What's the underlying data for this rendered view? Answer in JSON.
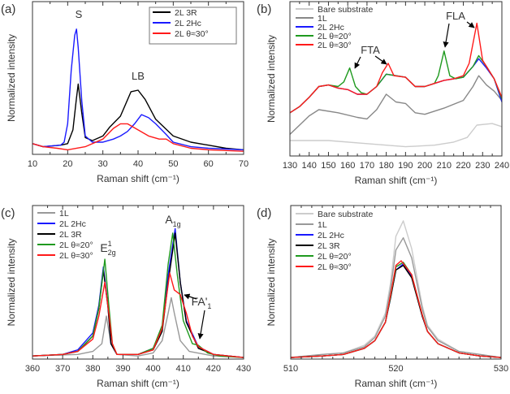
{
  "chart_data": [
    {
      "panel": "(a)",
      "type": "line",
      "xlabel": "Raman shift (cm⁻¹)",
      "ylabel": "Normalized intensity",
      "xlim": [
        10,
        70
      ],
      "ylim": [
        0,
        1
      ],
      "xticks": [
        10,
        20,
        30,
        40,
        50,
        60,
        70
      ],
      "minor_step": 5,
      "legend": "top-right",
      "legend_boxed": true,
      "grid": false,
      "annotations": [
        {
          "text": "S"
        },
        {
          "text": "LB"
        }
      ],
      "series": [
        {
          "name": "2L 3R",
          "color": "#000000",
          "x": [
            10,
            13,
            18,
            20,
            21.5,
            22.5,
            23,
            24,
            25,
            27,
            30,
            32,
            35,
            38,
            40,
            42,
            45,
            50,
            55,
            60,
            65,
            70
          ],
          "y": [
            0.07,
            0.05,
            0.06,
            0.07,
            0.16,
            0.37,
            0.46,
            0.27,
            0.11,
            0.09,
            0.12,
            0.18,
            0.25,
            0.41,
            0.42,
            0.36,
            0.23,
            0.12,
            0.08,
            0.06,
            0.04,
            0.03
          ]
        },
        {
          "name": "2L 2Hc",
          "color": "#1a1aff",
          "x": [
            10,
            13,
            18,
            19,
            20,
            21,
            22,
            22.5,
            23,
            24,
            25,
            27,
            30,
            33,
            35,
            37,
            39,
            41,
            43,
            45,
            48,
            50,
            55,
            60,
            70
          ],
          "y": [
            0.07,
            0.05,
            0.06,
            0.08,
            0.2,
            0.55,
            0.78,
            0.82,
            0.7,
            0.35,
            0.12,
            0.08,
            0.08,
            0.1,
            0.12,
            0.15,
            0.2,
            0.26,
            0.24,
            0.2,
            0.13,
            0.08,
            0.05,
            0.04,
            0.03
          ]
        },
        {
          "name": "2L θ≈30°",
          "color": "#ff1a1a",
          "x": [
            10,
            13,
            17,
            20,
            25,
            30,
            33,
            35,
            37,
            40,
            43,
            46,
            48,
            50,
            55,
            60,
            70
          ],
          "y": [
            0.07,
            0.05,
            0.04,
            0.03,
            0.05,
            0.1,
            0.17,
            0.2,
            0.2,
            0.16,
            0.12,
            0.1,
            0.1,
            0.07,
            0.04,
            0.03,
            0.02
          ]
        }
      ]
    },
    {
      "panel": "(b)",
      "type": "line",
      "xlabel": "Raman shift (cm⁻¹)",
      "ylabel": "Normalized intensity",
      "xlim": [
        130,
        240
      ],
      "ylim": [
        0,
        1
      ],
      "xticks": [
        130,
        140,
        150,
        160,
        170,
        180,
        190,
        200,
        210,
        220,
        230,
        240
      ],
      "minor_step": 5,
      "legend": "top-left",
      "legend_boxed": false,
      "grid": false,
      "annotations": [
        {
          "text": "FTA"
        },
        {
          "text": "FLA"
        }
      ],
      "series": [
        {
          "name": "Bare substrate",
          "color": "#cccccc",
          "x": [
            130,
            150,
            170,
            190,
            205,
            215,
            222,
            227,
            235,
            240
          ],
          "y": [
            0.1,
            0.1,
            0.08,
            0.06,
            0.07,
            0.09,
            0.12,
            0.2,
            0.21,
            0.19
          ]
        },
        {
          "name": "1L",
          "color": "#888888",
          "x": [
            130,
            135,
            140,
            145,
            155,
            165,
            170,
            175,
            180,
            185,
            190,
            195,
            200,
            210,
            220,
            225,
            228,
            232,
            236,
            240
          ],
          "y": [
            0.14,
            0.2,
            0.26,
            0.3,
            0.28,
            0.25,
            0.24,
            0.3,
            0.4,
            0.35,
            0.34,
            0.28,
            0.27,
            0.31,
            0.36,
            0.45,
            0.52,
            0.46,
            0.42,
            0.36
          ]
        },
        {
          "name": "2L 2Hc",
          "color": "#1a1aff",
          "x": [
            130,
            135,
            140,
            145,
            150,
            155,
            160,
            165,
            170,
            175,
            180,
            185,
            190,
            195,
            200,
            205,
            210,
            215,
            220,
            225,
            228,
            232,
            236,
            240
          ],
          "y": [
            0.28,
            0.32,
            0.38,
            0.45,
            0.46,
            0.44,
            0.43,
            0.4,
            0.4,
            0.45,
            0.53,
            0.52,
            0.51,
            0.45,
            0.45,
            0.47,
            0.49,
            0.5,
            0.51,
            0.58,
            0.63,
            0.57,
            0.5,
            0.35
          ]
        },
        {
          "name": "2L θ≈20°",
          "color": "#1f9a1f",
          "x": [
            130,
            135,
            140,
            145,
            150,
            155,
            158,
            161,
            164,
            167,
            170,
            175,
            180,
            185,
            190,
            195,
            200,
            205,
            207,
            210,
            213,
            216,
            220,
            225,
            228,
            232,
            236,
            240
          ],
          "y": [
            0.28,
            0.32,
            0.38,
            0.45,
            0.46,
            0.45,
            0.48,
            0.57,
            0.45,
            0.41,
            0.4,
            0.45,
            0.53,
            0.52,
            0.51,
            0.45,
            0.45,
            0.47,
            0.52,
            0.68,
            0.52,
            0.5,
            0.51,
            0.58,
            0.65,
            0.58,
            0.5,
            0.37
          ]
        },
        {
          "name": "2L θ≈30°",
          "color": "#ff1a1a",
          "x": [
            130,
            135,
            140,
            145,
            150,
            155,
            160,
            165,
            170,
            175,
            178,
            181,
            184,
            190,
            195,
            200,
            205,
            210,
            215,
            220,
            223,
            227,
            230,
            232,
            236,
            240
          ],
          "y": [
            0.28,
            0.32,
            0.38,
            0.45,
            0.46,
            0.44,
            0.43,
            0.4,
            0.4,
            0.45,
            0.54,
            0.6,
            0.52,
            0.51,
            0.45,
            0.45,
            0.47,
            0.49,
            0.5,
            0.52,
            0.6,
            0.86,
            0.62,
            0.58,
            0.5,
            0.38
          ]
        }
      ]
    },
    {
      "panel": "(c)",
      "type": "line",
      "xlabel": "Raman shift (cm⁻¹)",
      "ylabel": "Normalized intensity",
      "xlim": [
        360,
        430
      ],
      "ylim": [
        0,
        1
      ],
      "xticks": [
        360,
        370,
        380,
        390,
        400,
        410,
        420,
        430
      ],
      "minor_step": 5,
      "legend": "top-left",
      "legend_boxed": false,
      "grid": false,
      "annotations": [
        {
          "text": "A",
          "sub": "1g"
        },
        {
          "text": "E",
          "sup": "1",
          "sub": "2g"
        },
        {
          "text": "FA'",
          "sub": "1"
        }
      ],
      "series": [
        {
          "name": "1L",
          "color": "#999999",
          "x": [
            360,
            375,
            380,
            383,
            384.5,
            386,
            388,
            395,
            400,
            403,
            405,
            406,
            407,
            409,
            412,
            420,
            430
          ],
          "y": [
            0.02,
            0.03,
            0.05,
            0.1,
            0.28,
            0.1,
            0.03,
            0.02,
            0.04,
            0.12,
            0.3,
            0.4,
            0.3,
            0.12,
            0.05,
            0.02,
            0.01
          ]
        },
        {
          "name": "2L 2Hc",
          "color": "#1a1aff",
          "x": [
            360,
            370,
            375,
            380,
            382,
            383.5,
            385,
            386,
            388,
            395,
            400,
            403,
            405,
            407.3,
            409,
            411,
            415,
            420,
            430
          ],
          "y": [
            0.02,
            0.03,
            0.06,
            0.17,
            0.35,
            0.6,
            0.35,
            0.1,
            0.03,
            0.03,
            0.07,
            0.2,
            0.55,
            0.85,
            0.5,
            0.25,
            0.08,
            0.03,
            0.01
          ]
        },
        {
          "name": "2L 3R",
          "color": "#000000",
          "x": [
            360,
            370,
            375,
            380,
            382,
            383.5,
            385,
            386,
            388,
            395,
            400,
            403,
            405,
            407.3,
            409,
            411,
            415,
            420,
            430
          ],
          "y": [
            0.02,
            0.03,
            0.05,
            0.15,
            0.33,
            0.58,
            0.34,
            0.1,
            0.03,
            0.03,
            0.06,
            0.18,
            0.5,
            0.82,
            0.5,
            0.24,
            0.07,
            0.03,
            0.01
          ]
        },
        {
          "name": "2L θ≈20°",
          "color": "#1f9a1f",
          "x": [
            360,
            370,
            375,
            380,
            382,
            384,
            385.3,
            386.5,
            388,
            395,
            400,
            403,
            405,
            406.5,
            408,
            410,
            413,
            415,
            418,
            422,
            430
          ],
          "y": [
            0.02,
            0.03,
            0.05,
            0.15,
            0.33,
            0.65,
            0.35,
            0.1,
            0.03,
            0.03,
            0.07,
            0.22,
            0.62,
            0.82,
            0.55,
            0.25,
            0.1,
            0.09,
            0.04,
            0.02,
            0.01
          ]
        },
        {
          "name": "2L θ≈30°",
          "color": "#ff1a1a",
          "x": [
            360,
            370,
            375,
            380,
            382,
            384,
            385.3,
            386.5,
            388,
            395,
            400,
            403,
            405.5,
            407,
            409,
            411,
            413,
            415,
            420,
            430
          ],
          "y": [
            0.02,
            0.03,
            0.05,
            0.13,
            0.28,
            0.5,
            0.3,
            0.1,
            0.03,
            0.03,
            0.06,
            0.2,
            0.56,
            0.45,
            0.42,
            0.3,
            0.15,
            0.08,
            0.03,
            0.01
          ]
        }
      ]
    },
    {
      "panel": "(d)",
      "type": "line",
      "xlabel": "Raman shift (cm⁻¹)",
      "ylabel": "Normalized intensity",
      "xlim": [
        510,
        530
      ],
      "ylim": [
        0,
        1
      ],
      "xticks": [
        510,
        520,
        530
      ],
      "minor_step": 1,
      "legend": "top-left",
      "legend_boxed": false,
      "grid": false,
      "annotations": [],
      "series": [
        {
          "name": "Bare substrate",
          "color": "#cccccc",
          "x": [
            510,
            513,
            515,
            517,
            518,
            519,
            519.5,
            520,
            520.7,
            521.5,
            522.5,
            523,
            524,
            526,
            528,
            530
          ],
          "y": [
            0.01,
            0.03,
            0.04,
            0.09,
            0.15,
            0.3,
            0.5,
            0.8,
            0.9,
            0.72,
            0.35,
            0.22,
            0.13,
            0.05,
            0.03,
            0.01
          ]
        },
        {
          "name": "1L",
          "color": "#999999",
          "x": [
            510,
            513,
            515,
            517,
            518,
            519,
            519.5,
            520,
            520.7,
            521.5,
            522.5,
            523,
            524,
            526,
            528,
            530
          ],
          "y": [
            0.01,
            0.03,
            0.04,
            0.08,
            0.14,
            0.28,
            0.46,
            0.71,
            0.79,
            0.66,
            0.33,
            0.21,
            0.12,
            0.05,
            0.03,
            0.01
          ]
        },
        {
          "name": "2L 2Hc",
          "color": "#1a1aff",
          "x": [
            510,
            513,
            515,
            517,
            518,
            519,
            519.5,
            520,
            520.7,
            521.5,
            522.5,
            523,
            524,
            526,
            528,
            530
          ],
          "y": [
            0.01,
            0.02,
            0.03,
            0.07,
            0.12,
            0.24,
            0.4,
            0.58,
            0.62,
            0.54,
            0.28,
            0.18,
            0.1,
            0.04,
            0.02,
            0.01
          ]
        },
        {
          "name": "2L 3R",
          "color": "#000000",
          "x": [
            510,
            513,
            515,
            517,
            518,
            519,
            519.5,
            520,
            520.7,
            521.5,
            522.5,
            523,
            524,
            526,
            528,
            530
          ],
          "y": [
            0.01,
            0.02,
            0.03,
            0.07,
            0.12,
            0.24,
            0.4,
            0.58,
            0.61,
            0.53,
            0.28,
            0.18,
            0.1,
            0.04,
            0.02,
            0.01
          ]
        },
        {
          "name": "2L θ≈20°",
          "color": "#1f9a1f",
          "x": [
            510,
            513,
            515,
            517,
            518,
            519,
            519.5,
            520,
            520.7,
            521.5,
            522.5,
            523,
            524,
            526,
            528,
            530
          ],
          "y": [
            0.01,
            0.02,
            0.03,
            0.07,
            0.12,
            0.24,
            0.41,
            0.6,
            0.63,
            0.55,
            0.29,
            0.18,
            0.1,
            0.04,
            0.02,
            0.01
          ]
        },
        {
          "name": "2L θ≈30°",
          "color": "#ff1a1a",
          "x": [
            510,
            513,
            515,
            517,
            518,
            519,
            519.5,
            520,
            520.5,
            521.5,
            522.5,
            523,
            524,
            526,
            528,
            530
          ],
          "y": [
            0.01,
            0.02,
            0.03,
            0.07,
            0.12,
            0.24,
            0.42,
            0.61,
            0.64,
            0.55,
            0.29,
            0.18,
            0.1,
            0.04,
            0.02,
            0.01
          ]
        }
      ]
    }
  ]
}
